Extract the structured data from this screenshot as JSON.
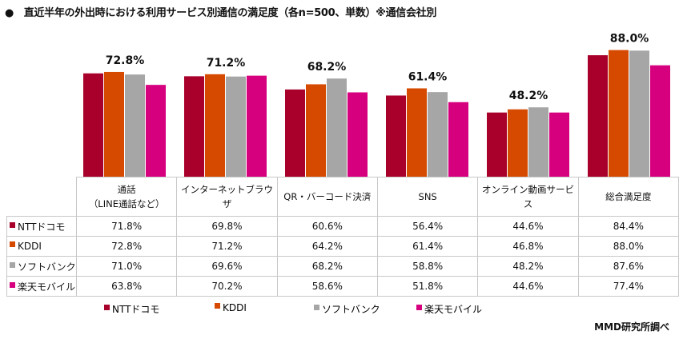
{
  "chart_data": {
    "type": "bar",
    "title": "●　直近半年の外出時における利用サービス別通信の満足度（各n=500、単数）※通信会社別",
    "categories": [
      "通話\n（LINE通話など）",
      "インターネットブラウザ",
      "QR・バーコード決済",
      "SNS",
      "オンライン動画サービス",
      "総合満足度"
    ],
    "series": [
      {
        "name": "NTTドコモ",
        "color": "#A8002A",
        "values": [
          71.8,
          69.8,
          60.6,
          56.4,
          44.6,
          84.4
        ],
        "labels": [
          "71.8%",
          "69.8%",
          "60.6%",
          "56.4%",
          "44.6%",
          "84.4%"
        ]
      },
      {
        "name": "KDDI",
        "color": "#D64A00",
        "values": [
          72.8,
          71.2,
          64.2,
          61.4,
          46.8,
          88.0
        ],
        "labels": [
          "72.8%",
          "71.2%",
          "64.2%",
          "61.4%",
          "46.8%",
          "88.0%"
        ]
      },
      {
        "name": "ソフトバンク",
        "color": "#A6A6A6",
        "values": [
          71.0,
          69.6,
          68.2,
          58.8,
          48.2,
          87.6
        ],
        "labels": [
          "71.0%",
          "69.6%",
          "68.2%",
          "58.8%",
          "48.2%",
          "87.6%"
        ]
      },
      {
        "name": "楽天モバイル",
        "color": "#D6007F",
        "values": [
          63.8,
          70.2,
          58.6,
          51.8,
          44.6,
          77.4
        ],
        "labels": [
          "63.8%",
          "70.2%",
          "58.6%",
          "51.8%",
          "44.6%",
          "77.4%"
        ]
      }
    ],
    "annotations": [
      "72.8%",
      "71.2%",
      "68.2%",
      "61.4%",
      "48.2%",
      "88.0%"
    ],
    "ylim": [
      0,
      100
    ],
    "grid": false,
    "legend": "bottom",
    "data_table": true
  },
  "source": "MMD研究所調べ"
}
